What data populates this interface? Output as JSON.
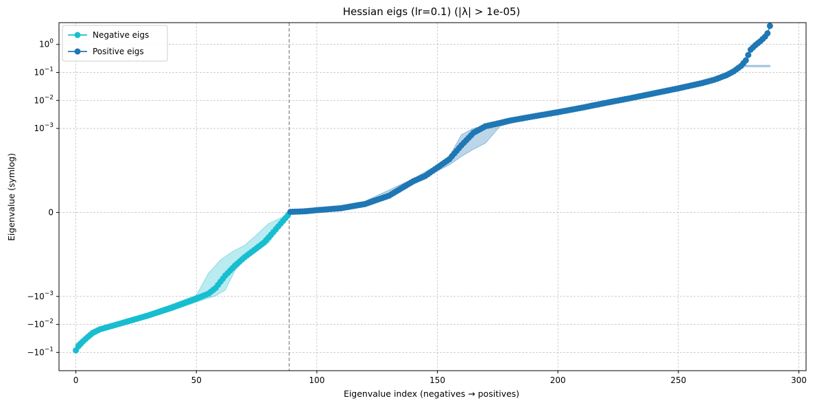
{
  "chart_data": {
    "type": "line",
    "title": "Hessian eigs (lr=0.1) (|λ| > 1e-05)",
    "xlabel": "Eigenvalue index (negatives → positives)",
    "ylabel": "Eigenvalue (symlog)",
    "yscale": "symlog",
    "linthresh": 1e-05,
    "xlim": [
      -7,
      303
    ],
    "ylim": [
      -0.45,
      6
    ],
    "grid": true,
    "legend_position": "top-left",
    "divider_x": 88.5,
    "x_ticks": [
      0,
      50,
      100,
      150,
      200,
      250,
      300
    ],
    "x_tick_labels": [
      "0",
      "50",
      "100",
      "150",
      "200",
      "250",
      "300"
    ],
    "y_ticks": [
      -0.1,
      -0.01,
      -0.001,
      0,
      0.001,
      0.01,
      0.1,
      1
    ],
    "y_tick_labels": [
      {
        "base": "−10",
        "exp": "−1"
      },
      {
        "base": "−10",
        "exp": "−2"
      },
      {
        "base": "−10",
        "exp": "−3"
      },
      {
        "base": "0",
        "exp": ""
      },
      {
        "base": "10",
        "exp": "−3"
      },
      {
        "base": "10",
        "exp": "−2"
      },
      {
        "base": "10",
        "exp": "−1"
      },
      {
        "base": "10",
        "exp": "0"
      }
    ],
    "series": [
      {
        "name": "Negative eigs",
        "color": "#17becf",
        "x_range": [
          0,
          88
        ],
        "anchors": [
          [
            0,
            -0.085
          ],
          [
            1,
            -0.06
          ],
          [
            3,
            -0.04
          ],
          [
            5,
            -0.028
          ],
          [
            7,
            -0.02
          ],
          [
            10,
            -0.015
          ],
          [
            20,
            -0.0085
          ],
          [
            30,
            -0.0048
          ],
          [
            40,
            -0.0025
          ],
          [
            50,
            -0.0012
          ],
          [
            55,
            -0.0008
          ],
          [
            58,
            -0.0005
          ],
          [
            62,
            -0.00018
          ],
          [
            66,
            -8e-05
          ],
          [
            70,
            -4e-05
          ],
          [
            74,
            -2.2e-05
          ],
          [
            78,
            -1.2e-05
          ],
          [
            82,
            -7e-06
          ],
          [
            86,
            -3e-06
          ],
          [
            88,
            -1e-06
          ]
        ],
        "band_upper": [
          [
            0,
            -0.05
          ],
          [
            2,
            -0.035
          ],
          [
            5,
            -0.022
          ],
          [
            10,
            -0.013
          ],
          [
            20,
            -0.007
          ],
          [
            30,
            -0.0038
          ],
          [
            40,
            -0.0019
          ],
          [
            50,
            -0.0009
          ],
          [
            55,
            -0.00015
          ],
          [
            60,
            -5e-05
          ],
          [
            65,
            -2.5e-05
          ],
          [
            70,
            -1.5e-05
          ],
          [
            75,
            -8e-06
          ],
          [
            80,
            -4e-06
          ],
          [
            85,
            -2e-06
          ],
          [
            88,
            -1e-06
          ]
        ],
        "band_lower": [
          [
            0,
            -0.1
          ],
          [
            2,
            -0.07
          ],
          [
            5,
            -0.035
          ],
          [
            10,
            -0.018
          ],
          [
            20,
            -0.0105
          ],
          [
            30,
            -0.006
          ],
          [
            40,
            -0.0032
          ],
          [
            50,
            -0.0016
          ],
          [
            58,
            -0.00095
          ],
          [
            62,
            -0.0006
          ],
          [
            66,
            -0.00012
          ],
          [
            70,
            -5e-05
          ],
          [
            75,
            -2.5e-05
          ],
          [
            80,
            -1.2e-05
          ],
          [
            85,
            -5e-06
          ],
          [
            88,
            -2e-06
          ]
        ]
      },
      {
        "name": "Positive eigs",
        "color": "#1f77b4",
        "x_range": [
          89,
          288
        ],
        "anchors": [
          [
            89,
            2e-07
          ],
          [
            95,
            4e-07
          ],
          [
            100,
            8e-07
          ],
          [
            110,
            1.5e-06
          ],
          [
            120,
            3e-06
          ],
          [
            130,
            6e-06
          ],
          [
            140,
            1.3e-05
          ],
          [
            145,
            2e-05
          ],
          [
            150,
            4e-05
          ],
          [
            155,
            8e-05
          ],
          [
            160,
            0.00025
          ],
          [
            165,
            0.0007
          ],
          [
            170,
            0.0012
          ],
          [
            175,
            0.0015
          ],
          [
            180,
            0.0019
          ],
          [
            190,
            0.0027
          ],
          [
            200,
            0.0038
          ],
          [
            210,
            0.0055
          ],
          [
            220,
            0.0082
          ],
          [
            230,
            0.012
          ],
          [
            240,
            0.018
          ],
          [
            250,
            0.027
          ],
          [
            260,
            0.042
          ],
          [
            265,
            0.055
          ],
          [
            270,
            0.08
          ],
          [
            273,
            0.11
          ],
          [
            276,
            0.17
          ],
          [
            278,
            0.27
          ],
          [
            279,
            0.42
          ],
          [
            280,
            0.65
          ],
          [
            282,
            0.95
          ],
          [
            284,
            1.3
          ],
          [
            286,
            1.9
          ],
          [
            287,
            2.5
          ],
          [
            288,
            4.6
          ]
        ],
        "band_upper": [
          [
            89,
            3e-07
          ],
          [
            100,
            1e-06
          ],
          [
            120,
            4e-06
          ],
          [
            140,
            1.6e-05
          ],
          [
            150,
            5e-05
          ],
          [
            155,
            0.0001
          ],
          [
            160,
            0.0006
          ],
          [
            165,
            0.001
          ],
          [
            170,
            0.0013
          ],
          [
            175,
            0.0016
          ],
          [
            190,
            0.0029
          ],
          [
            210,
            0.0058
          ],
          [
            230,
            0.0126
          ],
          [
            250,
            0.0285
          ],
          [
            270,
            0.085
          ],
          [
            276,
            0.18
          ]
        ],
        "band_lower": [
          [
            89,
            1e-07
          ],
          [
            100,
            6e-07
          ],
          [
            120,
            2.2e-06
          ],
          [
            140,
            1e-05
          ],
          [
            150,
            3e-05
          ],
          [
            155,
            5e-05
          ],
          [
            160,
            0.0001
          ],
          [
            165,
            0.00018
          ],
          [
            170,
            0.0003
          ],
          [
            173,
            0.0006
          ],
          [
            176,
            0.0012
          ],
          [
            190,
            0.0025
          ],
          [
            210,
            0.005
          ],
          [
            230,
            0.0112
          ],
          [
            250,
            0.025
          ],
          [
            270,
            0.074
          ],
          [
            276,
            0.16
          ]
        ]
      }
    ]
  }
}
